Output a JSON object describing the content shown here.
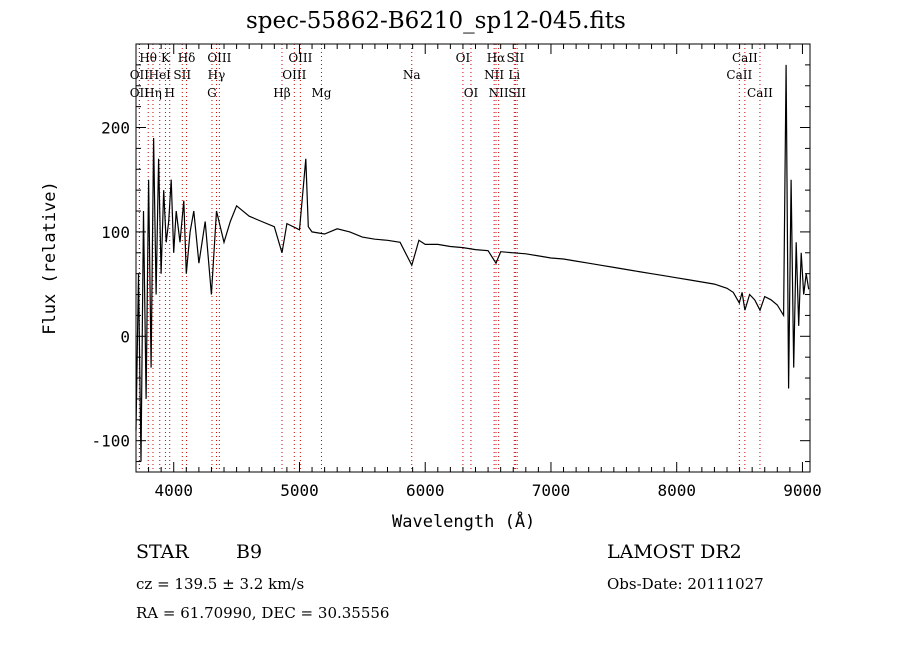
{
  "chart_data": {
    "type": "line",
    "title": "spec-55862-B6210_sp12-045.fits",
    "xlabel": "Wavelength (Å)",
    "ylabel": "Flux (relative)",
    "xlim": [
      3700,
      9060
    ],
    "ylim": [
      -130,
      280
    ],
    "xticks": [
      4000,
      5000,
      6000,
      7000,
      8000,
      9000
    ],
    "yticks": [
      -100,
      0,
      100,
      200
    ],
    "grid": false,
    "line_color": "#000000",
    "marker_color": "#cc0000",
    "series": [
      {
        "x": [
          3700,
          3720,
          3740,
          3760,
          3780,
          3800,
          3820,
          3840,
          3860,
          3880,
          3900,
          3920,
          3940,
          3960,
          3980,
          4000,
          4020,
          4050,
          4080,
          4100,
          4130,
          4160,
          4200,
          4250,
          4300,
          4340,
          4400,
          4450,
          4500,
          4600,
          4700,
          4800,
          4861,
          4900,
          5000,
          5050,
          5070,
          5100,
          5200,
          5300,
          5400,
          5500,
          5600,
          5700,
          5800,
          5893,
          5950,
          6000,
          6100,
          6200,
          6300,
          6400,
          6500,
          6563,
          6600,
          6700,
          6800,
          6900,
          7000,
          7100,
          7200,
          7300,
          7400,
          7500,
          7600,
          7700,
          7800,
          7900,
          8000,
          8100,
          8200,
          8300,
          8400,
          8450,
          8498,
          8520,
          8542,
          8580,
          8620,
          8662,
          8700,
          8750,
          8800,
          8850,
          8870,
          8890,
          8910,
          8930,
          8950,
          8970,
          8990,
          9010,
          9030,
          9050
        ],
        "y": [
          -90,
          60,
          -120,
          120,
          -60,
          150,
          -30,
          190,
          40,
          170,
          60,
          140,
          90,
          110,
          150,
          80,
          120,
          90,
          130,
          60,
          100,
          120,
          70,
          110,
          40,
          120,
          90,
          110,
          125,
          115,
          110,
          105,
          80,
          108,
          102,
          170,
          105,
          100,
          98,
          103,
          100,
          95,
          93,
          92,
          90,
          68,
          92,
          88,
          88,
          86,
          85,
          83,
          82,
          70,
          81,
          80,
          79,
          77,
          75,
          74,
          72,
          70,
          68,
          66,
          64,
          62,
          60,
          58,
          56,
          54,
          52,
          50,
          46,
          42,
          32,
          42,
          25,
          40,
          35,
          25,
          38,
          35,
          30,
          20,
          260,
          -50,
          150,
          -30,
          90,
          10,
          80,
          40,
          60,
          45
        ]
      }
    ],
    "lines_top": [
      {
        "label": "Hθ",
        "x": 3797
      },
      {
        "label": "K",
        "x": 3934
      },
      {
        "label": "Hδ",
        "x": 4102
      },
      {
        "label": "OIII",
        "x": 4363
      },
      {
        "label": "OIII",
        "x": 5007
      },
      {
        "label": "OI",
        "x": 6300
      },
      {
        "label": "Hα",
        "x": 6563
      },
      {
        "label": "SII",
        "x": 6717
      },
      {
        "label": "CaII",
        "x": 8542
      }
    ],
    "lines_mid": [
      {
        "label": "OII",
        "x": 3727
      },
      {
        "label": "HeI",
        "x": 3889
      },
      {
        "label": "SII",
        "x": 4068
      },
      {
        "label": "Hγ",
        "x": 4340
      },
      {
        "label": "OIII",
        "x": 4959
      },
      {
        "label": "Na",
        "x": 5893
      },
      {
        "label": "NII",
        "x": 6548
      },
      {
        "label": "Li",
        "x": 6708
      },
      {
        "label": "CaII",
        "x": 8498
      }
    ],
    "lines_low": [
      {
        "label": "OII",
        "x": 3727
      },
      {
        "label": "Hη",
        "x": 3835
      },
      {
        "label": "H",
        "x": 3968
      },
      {
        "label": "G",
        "x": 4304
      },
      {
        "label": "Hβ",
        "x": 4861
      },
      {
        "label": "Mg",
        "x": 5175
      },
      {
        "label": "OI",
        "x": 6364
      },
      {
        "label": "NII",
        "x": 6584
      },
      {
        "label": "SII",
        "x": 6731
      },
      {
        "label": "CaII",
        "x": 8662
      }
    ]
  },
  "info": {
    "object_class": "STAR",
    "subclass": "B9",
    "survey": "LAMOST DR2",
    "cz": "cz = 139.5 ± 3.2 km/s",
    "obs_date": "Obs-Date: 20111027",
    "coords": "RA =  61.70990, DEC =  30.35556"
  }
}
